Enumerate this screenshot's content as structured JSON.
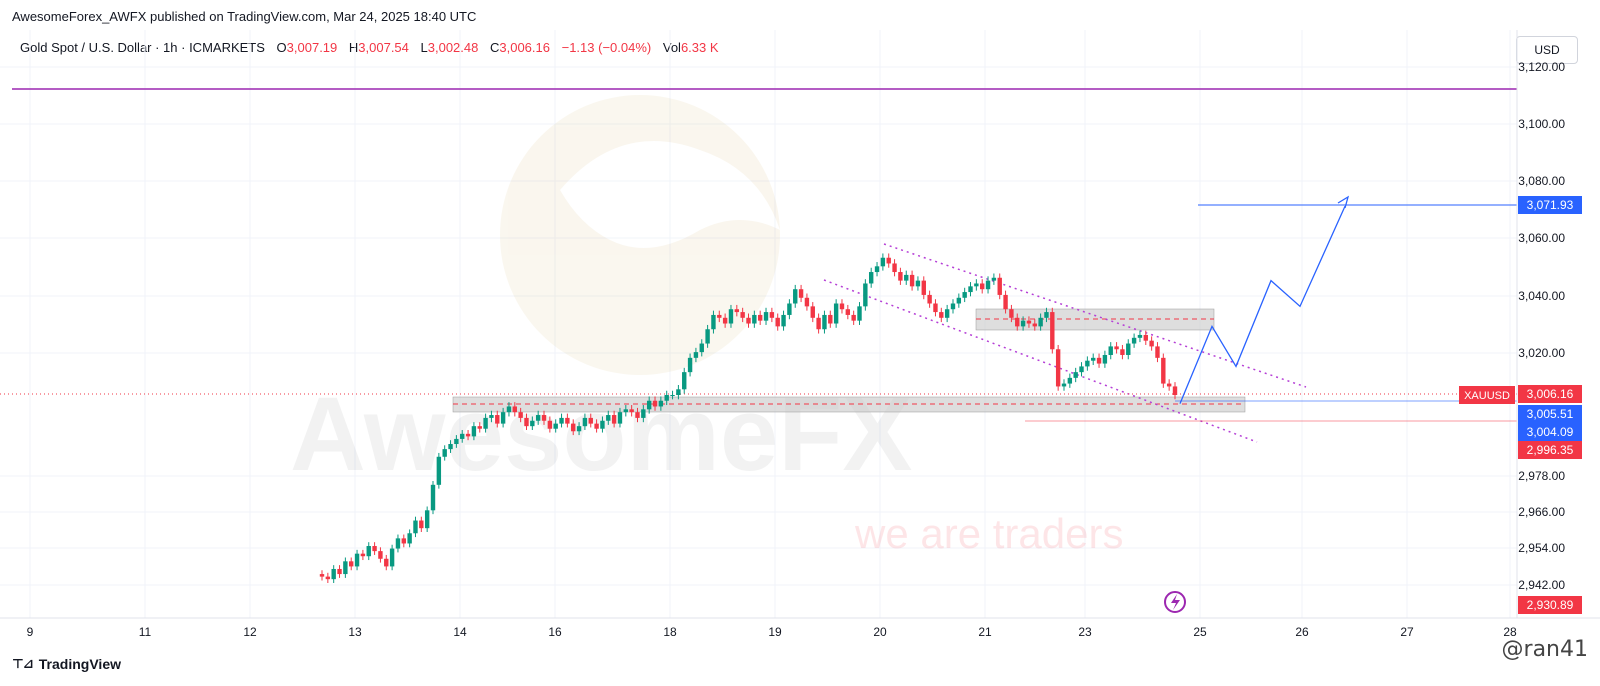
{
  "header": {
    "published": "AwesomeForex_AWFX published on TradingView.com, Mar 24, 2025 18:40 UTC"
  },
  "symbol": {
    "name": "Gold Spot / U.S. Dollar · 1h · ICMARKETS",
    "o_label": "O",
    "o_value": "3,007.19",
    "h_label": "H",
    "h_value": "3,007.54",
    "l_label": "L",
    "l_value": "3,002.48",
    "c_label": "C",
    "c_value": "3,006.16",
    "change": "−1.13 (−0.04%)",
    "vol_label": "Vol",
    "vol_value": "6.33 K"
  },
  "currency": "USD",
  "watermark": {
    "brand": "AwesomeFX",
    "tagline": "we are traders"
  },
  "footer": {
    "brand": "TradingView",
    "handle": "@ran41"
  },
  "colors": {
    "up": "#089981",
    "down": "#f23645",
    "purple_line": "#9c27b0",
    "projection": "#2962ff",
    "channel": "#b53fd6",
    "zone_fill": "#c8c8c8"
  },
  "chart_data": {
    "type": "candlestick",
    "symbol_badge": "XAUUSD",
    "y_ticks": [
      "3,120.00",
      "3,100.00",
      "3,080.00",
      "3,060.00",
      "3,040.00",
      "3,020.00",
      "2,978.00",
      "2,966.00",
      "2,954.00",
      "2,942.00"
    ],
    "x_ticks": [
      "9",
      "11",
      "12",
      "13",
      "14",
      "16",
      "18",
      "19",
      "20",
      "21",
      "23",
      "25",
      "26",
      "27",
      "28"
    ],
    "price_badges": [
      {
        "label": "3,071.93",
        "color": "#2962ff"
      },
      {
        "label": "3,006.16",
        "color": "#f23645"
      },
      {
        "label": "3,005.51",
        "color": "#2962ff"
      },
      {
        "label": "3,004.09",
        "color": "#2962ff"
      },
      {
        "label": "2,996.35",
        "color": "#f23645"
      },
      {
        "label": "2,930.89",
        "color": "#f23645"
      }
    ],
    "horizontal_level": 3113,
    "last_price": 3006.16,
    "target": 3071.93,
    "close_series": [
      2936,
      2935,
      2939,
      2937,
      2942,
      2940,
      2945,
      2944,
      2948,
      2946,
      2943,
      2940,
      2947,
      2951,
      2949,
      2953,
      2958,
      2955,
      2962,
      2972,
      2983,
      2986,
      2988,
      2990,
      2992,
      2991,
      2995,
      2994,
      2998,
      2999,
      2996,
      3000,
      3002,
      3000,
      2998,
      2995,
      2997,
      2999,
      2997,
      2994,
      2996,
      2998,
      2996,
      2993,
      2995,
      2998,
      2996,
      2994,
      2997,
      2999,
      2996,
      3000,
      3001,
      3000,
      2998,
      3001,
      3004,
      3002,
      3004,
      3006,
      3006,
      3008,
      3014,
      3019,
      3021,
      3024,
      3029,
      3034,
      3033,
      3031,
      3036,
      3035,
      3033,
      3031,
      3034,
      3032,
      3035,
      3033,
      3030,
      3034,
      3038,
      3043,
      3040,
      3037,
      3033,
      3029,
      3034,
      3031,
      3038,
      3036,
      3034,
      3032,
      3037,
      3045,
      3049,
      3051,
      3054,
      3052,
      3049,
      3046,
      3048,
      3044,
      3046,
      3041,
      3038,
      3035,
      3033,
      3036,
      3038,
      3040,
      3042,
      3044,
      3045,
      3043,
      3046,
      3047,
      3041,
      3036,
      3033,
      3030,
      3032,
      3031,
      3030,
      3033,
      3035,
      3022,
      3009,
      3010,
      3012,
      3014,
      3016,
      3018,
      3019,
      3017,
      3020,
      3023,
      3022,
      3020,
      3024,
      3026,
      3027,
      3025,
      3023,
      3019,
      3010,
      3009,
      3006
    ],
    "projection_path": [
      3003,
      3030,
      3016,
      3046,
      3037,
      3072
    ]
  }
}
